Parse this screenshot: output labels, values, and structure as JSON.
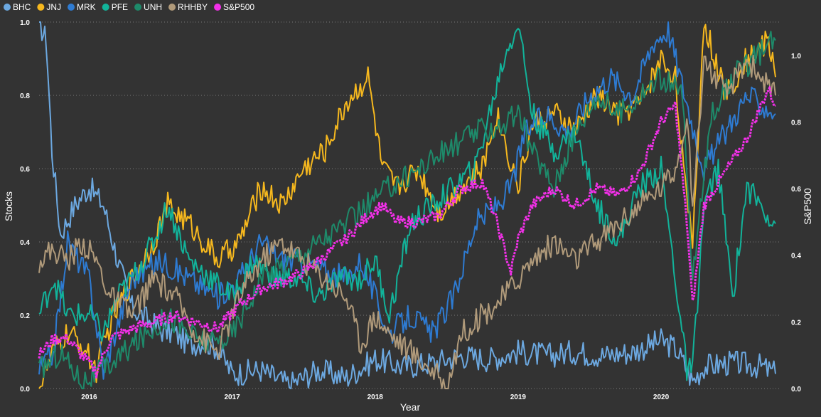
{
  "chart_data": {
    "type": "line",
    "title": "",
    "xlabel": "Year",
    "ylabel": "Stocks",
    "y2label": "S&P500",
    "x_range": [
      2015.65,
      2020.83
    ],
    "ylim": [
      0,
      1
    ],
    "y2lim": [
      0,
      1.1
    ],
    "x_ticks": [
      {
        "label": "2016",
        "value": 2016.0
      },
      {
        "label": "2017",
        "value": 2017.0
      },
      {
        "label": "2018",
        "value": 2018.0
      },
      {
        "label": "2019",
        "value": 2019.0
      },
      {
        "label": "2020",
        "value": 2020.0
      }
    ],
    "y_ticks": [
      "0.0",
      "0.2",
      "0.4",
      "0.6",
      "0.8",
      "1.0"
    ],
    "y2_ticks": [
      "0.0",
      "0.2",
      "0.4",
      "0.6",
      "0.8",
      "1.0"
    ],
    "legend_position": "top-left",
    "series": [
      {
        "name": "BHC",
        "color": "#6CA8E0",
        "axis": "left",
        "x": [
          2015.65,
          2015.7,
          2015.74,
          2015.8,
          2015.9,
          2016.0,
          2016.1,
          2016.2,
          2016.3,
          2016.4,
          2016.5,
          2016.6,
          2016.7,
          2016.8,
          2016.9,
          2017.0,
          2017.2,
          2017.4,
          2017.6,
          2017.8,
          2018.0,
          2018.2,
          2018.4,
          2018.6,
          2018.8,
          2019.0,
          2019.2,
          2019.4,
          2019.6,
          2019.8,
          2020.0,
          2020.1,
          2020.17,
          2020.22,
          2020.3,
          2020.5,
          2020.7,
          2020.8
        ],
        "values": [
          1.0,
          0.95,
          0.65,
          0.42,
          0.5,
          0.55,
          0.5,
          0.35,
          0.22,
          0.19,
          0.16,
          0.15,
          0.12,
          0.13,
          0.11,
          0.04,
          0.05,
          0.01,
          0.05,
          0.03,
          0.08,
          0.06,
          0.07,
          0.09,
          0.08,
          0.1,
          0.09,
          0.1,
          0.09,
          0.1,
          0.13,
          0.11,
          0.06,
          0.02,
          0.06,
          0.07,
          0.06,
          0.04
        ]
      },
      {
        "name": "JNJ",
        "color": "#F6B81E",
        "axis": "left",
        "x": [
          2015.65,
          2015.75,
          2015.85,
          2015.95,
          2016.05,
          2016.15,
          2016.3,
          2016.45,
          2016.55,
          2016.7,
          2016.9,
          2017.05,
          2017.2,
          2017.35,
          2017.5,
          2017.65,
          2017.8,
          2017.95,
          2018.05,
          2018.15,
          2018.3,
          2018.45,
          2018.6,
          2018.75,
          2018.85,
          2019.0,
          2019.1,
          2019.25,
          2019.4,
          2019.55,
          2019.7,
          2019.85,
          2020.0,
          2020.1,
          2020.18,
          2020.22,
          2020.3,
          2020.45,
          2020.6,
          2020.75,
          2020.8
        ],
        "values": [
          0.0,
          0.1,
          0.15,
          0.12,
          0.05,
          0.18,
          0.3,
          0.4,
          0.5,
          0.45,
          0.35,
          0.4,
          0.55,
          0.5,
          0.6,
          0.65,
          0.78,
          0.85,
          0.6,
          0.55,
          0.6,
          0.48,
          0.55,
          0.6,
          0.75,
          0.55,
          0.72,
          0.75,
          0.7,
          0.8,
          0.75,
          0.78,
          0.9,
          0.85,
          0.5,
          0.4,
          1.0,
          0.8,
          0.9,
          0.95,
          0.85
        ]
      },
      {
        "name": "MRK",
        "color": "#2E7BD2",
        "axis": "left",
        "x": [
          2015.65,
          2015.75,
          2015.85,
          2016.0,
          2016.1,
          2016.3,
          2016.5,
          2016.7,
          2016.9,
          2017.05,
          2017.2,
          2017.35,
          2017.5,
          2017.65,
          2017.8,
          2017.9,
          2018.0,
          2018.1,
          2018.25,
          2018.4,
          2018.55,
          2018.7,
          2018.85,
          2018.95,
          2019.05,
          2019.2,
          2019.35,
          2019.5,
          2019.65,
          2019.8,
          2019.95,
          2020.05,
          2020.2,
          2020.3,
          2020.45,
          2020.6,
          2020.8
        ],
        "values": [
          0.05,
          0.1,
          0.4,
          0.3,
          0.05,
          0.3,
          0.35,
          0.3,
          0.25,
          0.3,
          0.4,
          0.35,
          0.35,
          0.32,
          0.3,
          0.35,
          0.25,
          0.15,
          0.2,
          0.15,
          0.25,
          0.45,
          0.5,
          0.55,
          0.7,
          0.75,
          0.7,
          0.8,
          0.85,
          0.8,
          0.95,
          0.98,
          0.75,
          0.6,
          0.7,
          0.8,
          0.75
        ]
      },
      {
        "name": "PFE",
        "color": "#12B39A",
        "axis": "left",
        "x": [
          2015.65,
          2015.75,
          2015.85,
          2016.0,
          2016.1,
          2016.2,
          2016.3,
          2016.45,
          2016.55,
          2016.7,
          2016.85,
          2017.0,
          2017.15,
          2017.3,
          2017.45,
          2017.6,
          2017.75,
          2017.9,
          2018.0,
          2018.1,
          2018.25,
          2018.4,
          2018.55,
          2018.7,
          2018.8,
          2018.9,
          2019.0,
          2019.1,
          2019.25,
          2019.4,
          2019.55,
          2019.7,
          2019.85,
          2020.0,
          2020.1,
          2020.18,
          2020.22,
          2020.3,
          2020.4,
          2020.5,
          2020.6,
          2020.7,
          2020.8
        ],
        "values": [
          0.2,
          0.3,
          0.2,
          0.2,
          0.15,
          0.25,
          0.3,
          0.4,
          0.5,
          0.35,
          0.3,
          0.25,
          0.35,
          0.3,
          0.3,
          0.25,
          0.3,
          0.3,
          0.35,
          0.2,
          0.45,
          0.5,
          0.55,
          0.6,
          0.75,
          0.9,
          1.0,
          0.75,
          0.65,
          0.7,
          0.5,
          0.4,
          0.55,
          0.6,
          0.3,
          0.05,
          0.05,
          0.5,
          0.6,
          0.25,
          0.55,
          0.5,
          0.45
        ]
      },
      {
        "name": "UNH",
        "color": "#1E8A6A",
        "axis": "left",
        "x": [
          2015.65,
          2015.8,
          2015.95,
          2016.1,
          2016.25,
          2016.4,
          2016.55,
          2016.7,
          2016.85,
          2017.0,
          2017.2,
          2017.4,
          2017.6,
          2017.8,
          2017.95,
          2018.1,
          2018.3,
          2018.5,
          2018.7,
          2018.9,
          2019.0,
          2019.1,
          2019.25,
          2019.4,
          2019.55,
          2019.7,
          2019.85,
          2020.0,
          2020.15,
          2020.22,
          2020.35,
          2020.5,
          2020.65,
          2020.8
        ],
        "values": [
          0.05,
          0.1,
          0.02,
          0.05,
          0.1,
          0.15,
          0.2,
          0.15,
          0.12,
          0.15,
          0.3,
          0.35,
          0.4,
          0.45,
          0.5,
          0.55,
          0.6,
          0.65,
          0.7,
          0.72,
          0.75,
          0.65,
          0.55,
          0.7,
          0.8,
          0.75,
          0.8,
          0.85,
          0.8,
          0.3,
          0.75,
          0.85,
          0.9,
          0.95
        ]
      },
      {
        "name": "RHHBY",
        "color": "#B09A7A",
        "axis": "left",
        "x": [
          2015.65,
          2015.75,
          2015.85,
          2015.95,
          2016.05,
          2016.15,
          2016.3,
          2016.45,
          2016.6,
          2016.75,
          2016.9,
          2017.05,
          2017.2,
          2017.35,
          2017.5,
          2017.65,
          2017.8,
          2017.9,
          2018.0,
          2018.1,
          2018.25,
          2018.4,
          2018.5,
          2018.6,
          2018.75,
          2018.9,
          2019.0,
          2019.1,
          2019.25,
          2019.4,
          2019.55,
          2019.7,
          2019.85,
          2020.0,
          2020.1,
          2020.18,
          2020.22,
          2020.3,
          2020.45,
          2020.6,
          2020.8
        ],
        "values": [
          0.35,
          0.38,
          0.35,
          0.4,
          0.35,
          0.25,
          0.2,
          0.3,
          0.25,
          0.15,
          0.1,
          0.25,
          0.35,
          0.4,
          0.35,
          0.3,
          0.25,
          0.12,
          0.2,
          0.15,
          0.1,
          0.05,
          0.0,
          0.15,
          0.2,
          0.25,
          0.3,
          0.35,
          0.4,
          0.35,
          0.4,
          0.45,
          0.5,
          0.55,
          0.6,
          0.75,
          0.5,
          0.9,
          0.8,
          0.9,
          0.8
        ]
      },
      {
        "name": "S&P500",
        "color": "#F230E8",
        "axis": "right",
        "dotted": true,
        "x": [
          2015.65,
          2015.75,
          2015.85,
          2015.95,
          2016.05,
          2016.15,
          2016.3,
          2016.45,
          2016.6,
          2016.75,
          2016.9,
          2017.05,
          2017.2,
          2017.35,
          2017.5,
          2017.65,
          2017.8,
          2017.95,
          2018.05,
          2018.15,
          2018.3,
          2018.45,
          2018.6,
          2018.75,
          2018.85,
          2018.95,
          2019.0,
          2019.1,
          2019.25,
          2019.4,
          2019.55,
          2019.7,
          2019.85,
          2020.0,
          2020.1,
          2020.18,
          2020.22,
          2020.3,
          2020.45,
          2020.6,
          2020.75,
          2020.8
        ],
        "values": [
          0.1,
          0.15,
          0.15,
          0.1,
          0.05,
          0.15,
          0.18,
          0.2,
          0.22,
          0.2,
          0.18,
          0.25,
          0.3,
          0.32,
          0.35,
          0.4,
          0.45,
          0.52,
          0.55,
          0.5,
          0.5,
          0.52,
          0.6,
          0.62,
          0.5,
          0.35,
          0.45,
          0.55,
          0.6,
          0.55,
          0.6,
          0.58,
          0.65,
          0.8,
          0.85,
          0.5,
          0.25,
          0.55,
          0.65,
          0.75,
          0.9,
          0.85
        ]
      }
    ]
  }
}
